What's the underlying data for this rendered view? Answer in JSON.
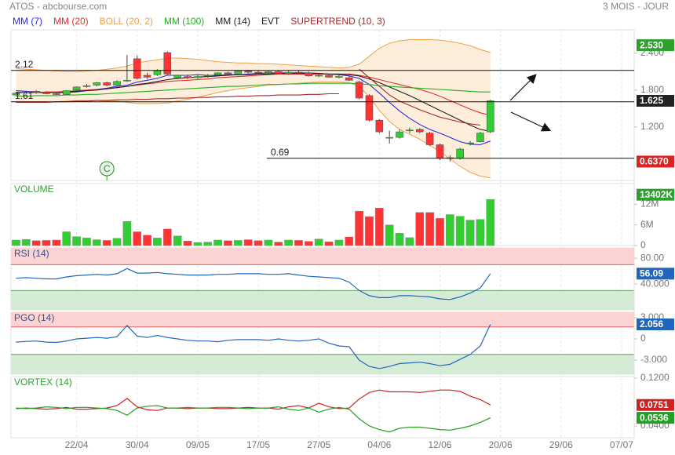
{
  "header": {
    "title": "ATOS - abcbourse.com",
    "period": "3 MOIS - JOUR"
  },
  "x_axis": {
    "xlim": [
      -0.5,
      61.25
    ],
    "xticks": [
      {
        "value": 6,
        "label": "22/04"
      },
      {
        "value": 12,
        "label": "30/04"
      },
      {
        "value": 18,
        "label": "09/05"
      },
      {
        "value": 24,
        "label": "17/05"
      },
      {
        "value": 30,
        "label": "27/05"
      },
      {
        "value": 36,
        "label": "04/06"
      },
      {
        "value": 42,
        "label": "12/06"
      },
      {
        "value": 48,
        "label": "20/06"
      },
      {
        "value": 54,
        "label": "29/06"
      },
      {
        "value": 60,
        "label": "07/07"
      }
    ]
  },
  "chart_data": [
    {
      "type": "candlestick",
      "ylim": [
        0.33,
        2.78
      ],
      "yticks": [
        {
          "value": 2.4,
          "label": "2.400"
        },
        {
          "value": 1.8,
          "label": "1.800"
        },
        {
          "value": 1.2,
          "label": "1.200"
        }
      ],
      "up_color": "#33cc33",
      "down_color": "#ff3333",
      "last_color": "#222222",
      "open": [
        1.72,
        1.76,
        1.78,
        1.76,
        1.74,
        1.73,
        1.8,
        1.86,
        1.88,
        1.92,
        1.88,
        1.95,
        2.31,
        2.04,
        2.05,
        2.41,
        2.0,
        2.02,
        2.0,
        2.03,
        2.05,
        2.08,
        2.06,
        2.11,
        2.09,
        2.08,
        2.1,
        2.07,
        2.09,
        2.08,
        2.03,
        2.04,
        2.01,
        2.0,
        1.93,
        1.71,
        1.31,
        1.03,
        1.03,
        1.14,
        1.16,
        1.1,
        0.91,
        0.69,
        0.69,
        0.93,
        0.96,
        1.12
      ],
      "high": [
        1.77,
        1.79,
        1.8,
        1.78,
        1.77,
        1.8,
        1.86,
        1.9,
        1.93,
        1.94,
        1.96,
        2.37,
        2.36,
        2.08,
        2.14,
        2.43,
        2.05,
        2.05,
        2.04,
        2.06,
        2.09,
        2.1,
        2.12,
        2.13,
        2.12,
        2.11,
        2.12,
        2.11,
        2.12,
        2.1,
        2.06,
        2.06,
        2.04,
        2.02,
        1.95,
        1.73,
        1.33,
        1.14,
        1.16,
        1.19,
        1.18,
        1.12,
        0.93,
        0.74,
        0.86,
        0.97,
        1.12,
        1.64
      ],
      "low": [
        1.7,
        1.74,
        1.74,
        1.73,
        1.72,
        1.72,
        1.79,
        1.84,
        1.86,
        1.86,
        1.87,
        1.93,
        1.97,
        1.98,
        2.03,
        2.04,
        1.98,
        1.98,
        1.98,
        2.0,
        2.03,
        2.04,
        2.05,
        2.07,
        2.06,
        2.06,
        2.06,
        2.05,
        2.06,
        2.02,
        2.01,
        2.0,
        1.99,
        1.95,
        1.65,
        1.29,
        1.1,
        0.93,
        1.01,
        1.1,
        1.1,
        0.89,
        0.66,
        0.64,
        0.67,
        0.9,
        0.95,
        1.1
      ],
      "close": [
        1.75,
        1.77,
        1.76,
        1.74,
        1.73,
        1.79,
        1.85,
        1.87,
        1.92,
        1.88,
        1.94,
        1.96,
        1.99,
        2.01,
        2.12,
        2.06,
        2.04,
        2.0,
        2.02,
        2.04,
        2.08,
        2.06,
        2.11,
        2.09,
        2.08,
        2.1,
        2.07,
        2.09,
        2.08,
        2.03,
        2.04,
        2.01,
        2.02,
        1.96,
        1.67,
        1.31,
        1.12,
        1.03,
        1.12,
        1.15,
        1.12,
        0.91,
        0.69,
        0.7,
        0.84,
        0.94,
        1.1,
        1.625
      ],
      "series": [
        {
          "name": "MM (7)",
          "color": "#2b2bdc",
          "values": [
            1.79,
            1.78,
            1.77,
            1.76,
            1.76,
            1.76,
            1.77,
            1.79,
            1.81,
            1.83,
            1.86,
            1.88,
            1.93,
            1.96,
            1.99,
            2.04,
            2.04,
            2.04,
            2.05,
            2.04,
            2.04,
            2.05,
            2.05,
            2.06,
            2.07,
            2.08,
            2.08,
            2.08,
            2.08,
            2.08,
            2.07,
            2.06,
            2.05,
            2.03,
            1.99,
            1.89,
            1.75,
            1.6,
            1.46,
            1.34,
            1.24,
            1.16,
            1.1,
            1.03,
            0.96,
            0.92,
            0.91,
            0.97
          ]
        },
        {
          "name": "MM (20)",
          "color": "#e03030",
          "values": [
            1.76,
            1.76,
            1.76,
            1.77,
            1.77,
            1.78,
            1.79,
            1.8,
            1.81,
            1.82,
            1.84,
            1.86,
            1.88,
            1.9,
            1.92,
            1.94,
            1.95,
            1.96,
            1.97,
            1.98,
            2.0,
            2.01,
            2.02,
            2.03,
            2.04,
            2.05,
            2.06,
            2.06,
            2.06,
            2.06,
            2.06,
            2.06,
            2.06,
            2.06,
            2.04,
            2.01,
            1.97,
            1.93,
            1.89,
            1.85,
            1.81,
            1.76,
            1.7,
            1.63,
            1.56,
            1.49,
            1.43,
            1.39
          ]
        },
        {
          "name": "BOLL (20, 2)",
          "type": "band",
          "color": "#f0a048",
          "fill": "#fde9d2",
          "upper": [
            2.15,
            2.14,
            2.13,
            2.12,
            2.11,
            2.1,
            2.1,
            2.11,
            2.12,
            2.14,
            2.16,
            2.19,
            2.24,
            2.27,
            2.29,
            2.32,
            2.32,
            2.31,
            2.3,
            2.28,
            2.26,
            2.25,
            2.24,
            2.24,
            2.23,
            2.23,
            2.22,
            2.21,
            2.2,
            2.19,
            2.18,
            2.17,
            2.16,
            2.17,
            2.22,
            2.35,
            2.48,
            2.56,
            2.6,
            2.62,
            2.62,
            2.62,
            2.61,
            2.59,
            2.56,
            2.52,
            2.46,
            2.41
          ],
          "lower": [
            1.6,
            1.6,
            1.6,
            1.6,
            1.61,
            1.62,
            1.63,
            1.63,
            1.63,
            1.62,
            1.62,
            1.6,
            1.58,
            1.58,
            1.58,
            1.59,
            1.62,
            1.65,
            1.68,
            1.72,
            1.76,
            1.79,
            1.82,
            1.84,
            1.86,
            1.88,
            1.89,
            1.9,
            1.91,
            1.92,
            1.93,
            1.93,
            1.93,
            1.92,
            1.86,
            1.69,
            1.47,
            1.29,
            1.16,
            1.08,
            1.0,
            0.9,
            0.8,
            0.68,
            0.56,
            0.46,
            0.4,
            0.37
          ]
        },
        {
          "name": "MM (100)",
          "color": "#22b022",
          "values": [
            1.7,
            1.7,
            1.71,
            1.71,
            1.71,
            1.72,
            1.72,
            1.73,
            1.73,
            1.74,
            1.75,
            1.76,
            1.77,
            1.78,
            1.79,
            1.8,
            1.81,
            1.82,
            1.83,
            1.84,
            1.85,
            1.86,
            1.86,
            1.87,
            1.88,
            1.89,
            1.89,
            1.9,
            1.9,
            1.91,
            1.91,
            1.91,
            1.91,
            1.91,
            1.9,
            1.89,
            1.87,
            1.86,
            1.85,
            1.84,
            1.83,
            1.82,
            1.81,
            1.8,
            1.79,
            1.78,
            1.77,
            1.77
          ]
        },
        {
          "name": "MM (14)",
          "color": "#222222",
          "values": [
            1.76,
            1.76,
            1.76,
            1.76,
            1.76,
            1.77,
            1.78,
            1.79,
            1.8,
            1.82,
            1.84,
            1.86,
            1.89,
            1.91,
            1.94,
            1.97,
            1.99,
            2.0,
            2.01,
            2.02,
            2.03,
            2.04,
            2.05,
            2.05,
            2.06,
            2.06,
            2.07,
            2.07,
            2.07,
            2.07,
            2.07,
            2.06,
            2.06,
            2.05,
            2.03,
            1.98,
            1.92,
            1.85,
            1.78,
            1.71,
            1.63,
            1.55,
            1.47,
            1.39,
            1.31,
            1.23,
            1.16,
            1.13
          ]
        },
        {
          "name": "EVT",
          "type": "event",
          "color": "#222222",
          "marker_color": "#2a8a2a",
          "x": [
            9
          ],
          "labels": [
            "C"
          ]
        },
        {
          "name": "SUPERTREND (10, 3)",
          "color": "#a52a2a",
          "values": [
            1.6,
            1.6,
            1.6,
            1.6,
            1.61,
            1.61,
            1.62,
            1.62,
            1.63,
            1.63,
            1.64,
            1.64,
            1.65,
            1.65,
            1.66,
            1.66,
            1.67,
            1.67,
            1.68,
            1.68,
            1.69,
            1.69,
            1.7,
            1.7,
            1.71,
            1.71,
            1.72,
            1.72,
            1.72,
            1.73,
            1.73,
            1.74,
            1.74,
            null,
            2.14,
            2.0,
            1.86,
            1.72,
            1.62,
            1.55,
            1.48,
            1.42,
            1.36,
            1.32,
            1.28,
            1.25,
            1.23,
            null
          ]
        }
      ],
      "levels": [
        2.12,
        1.61,
        0.69
      ],
      "markers": {
        "values": [
          2.53,
          0.637
        ],
        "value_labels": [
          "2.530",
          "0.6370"
        ],
        "colors": [
          "#2ea02e",
          "#dd2222"
        ]
      }
    },
    {
      "type": "bar",
      "title": "VOLUME",
      "title_color": "#2ea02e",
      "ylim": [
        0,
        18000000
      ],
      "yticks": [
        {
          "value": 12000000,
          "label": "12M"
        },
        {
          "value": 6000000,
          "label": "6M"
        },
        0
      ],
      "up_color": "#33cc33",
      "down_color": "#ff3333",
      "box_color": "#2ea02e",
      "last_value_label": "13402K",
      "values": [
        1600000,
        1800000,
        1400000,
        1500000,
        1600000,
        4000000,
        2600000,
        2200000,
        1700000,
        1500000,
        2100000,
        7000000,
        4000000,
        3000000,
        2200000,
        4800000,
        2800000,
        1300000,
        900000,
        1000000,
        1600000,
        1400000,
        1500000,
        1700000,
        1400000,
        1600000,
        1000000,
        1600000,
        1500000,
        1200000,
        1900000,
        1100000,
        1600000,
        2500000,
        10000000,
        8400000,
        10900000,
        6000000,
        3600000,
        2300000,
        9600000,
        9600000,
        7900000,
        9000000,
        8500000,
        7400000,
        7600000,
        13402000
      ]
    },
    {
      "type": "line",
      "title": "RSI (14)",
      "title_color": "#3a4f8a",
      "ylim": [
        0,
        96
      ],
      "yticks": [
        {
          "value": 80,
          "label": "80.00"
        },
        {
          "value": 40,
          "label": "40.000"
        }
      ],
      "zones": [
        {
          "from": 70,
          "to": 96,
          "color": "#fbd3d3",
          "border": "#e06060"
        },
        {
          "from": 0,
          "to": 30,
          "color": "#d5ebd5",
          "border": "#60a060"
        }
      ],
      "series": [
        {
          "color": "#2266bb",
          "values": [
            49,
            50,
            49,
            48,
            48,
            51,
            53,
            54,
            55,
            54,
            56,
            64,
            57,
            57,
            58,
            56,
            55,
            54,
            54,
            54,
            55,
            55,
            56,
            56,
            56,
            55,
            55,
            56,
            54,
            52,
            51,
            50,
            49,
            43,
            30,
            22,
            19,
            19,
            22,
            22,
            21,
            20,
            17,
            16,
            20,
            26,
            34,
            56.09
          ]
        }
      ]
    },
    {
      "type": "line",
      "title": "PGO (14)",
      "title_color": "#3a4f8a",
      "ylim": [
        -5,
        3.78
      ],
      "yticks": [
        {
          "value": 3,
          "label": "3.000"
        },
        0,
        {
          "value": -3,
          "label": "-3.000"
        }
      ],
      "zones": [
        {
          "from": 1.7,
          "to": 3.78,
          "color": "#fbd3d3",
          "border": "#e06060"
        },
        {
          "from": -5,
          "to": -2.2,
          "color": "#d5ebd5",
          "border": "#60a060"
        }
      ],
      "series": [
        {
          "color": "#2266bb",
          "values": [
            -0.45,
            -0.35,
            -0.3,
            -0.45,
            -0.5,
            -0.3,
            0.0,
            0.1,
            0.2,
            0.1,
            0.3,
            1.9,
            0.4,
            0.2,
            0.5,
            0.2,
            0.0,
            -0.2,
            -0.3,
            -0.3,
            -0.4,
            -0.2,
            -0.1,
            -0.1,
            -0.1,
            -0.2,
            0.0,
            -0.2,
            -0.3,
            -0.2,
            0.0,
            -0.6,
            -1.0,
            -1.1,
            -3.0,
            -3.9,
            -4.2,
            -3.9,
            -3.5,
            -3.4,
            -3.3,
            -3.5,
            -3.8,
            -3.6,
            -2.9,
            -2.2,
            -1.0,
            2.056
          ]
        }
      ]
    },
    {
      "type": "line",
      "title": "VORTEX (14)",
      "title_color": "#2ea02e",
      "ylim": [
        0.0203,
        0.1226
      ],
      "yticks": [
        {
          "value": 0.12,
          "label": "0.1200"
        },
        {
          "value": 0.04,
          "label": "0.0400"
        }
      ],
      "series": [
        {
          "color": "#cc2222",
          "values": [
            0.069,
            0.07,
            0.069,
            0.068,
            0.069,
            0.071,
            0.068,
            0.068,
            0.069,
            0.07,
            0.074,
            0.086,
            0.072,
            0.067,
            0.066,
            0.07,
            0.07,
            0.069,
            0.07,
            0.07,
            0.069,
            0.069,
            0.07,
            0.071,
            0.07,
            0.07,
            0.068,
            0.072,
            0.074,
            0.07,
            0.078,
            0.072,
            0.069,
            0.07,
            0.085,
            0.096,
            0.1,
            0.097,
            0.097,
            0.097,
            0.096,
            0.098,
            0.1,
            0.1,
            0.098,
            0.09,
            0.084,
            0.0751
          ]
        },
        {
          "color": "#22a022",
          "values": [
            0.07,
            0.069,
            0.07,
            0.072,
            0.071,
            0.069,
            0.071,
            0.071,
            0.07,
            0.069,
            0.066,
            0.058,
            0.07,
            0.073,
            0.074,
            0.07,
            0.07,
            0.071,
            0.07,
            0.07,
            0.071,
            0.071,
            0.07,
            0.069,
            0.07,
            0.07,
            0.072,
            0.068,
            0.066,
            0.07,
            0.063,
            0.068,
            0.071,
            0.068,
            0.052,
            0.04,
            0.034,
            0.03,
            0.036,
            0.038,
            0.038,
            0.036,
            0.034,
            0.033,
            0.036,
            0.04,
            0.046,
            0.0536
          ]
        }
      ]
    }
  ]
}
